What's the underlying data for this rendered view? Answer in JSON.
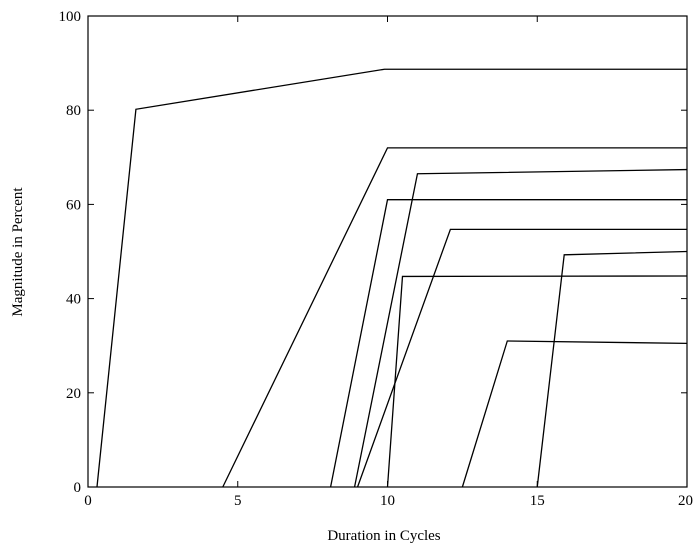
{
  "chart_data": {
    "type": "line",
    "title": "",
    "xlabel": "Duration in Cycles",
    "ylabel": "Magnitude in Percent",
    "xlim": [
      0,
      20
    ],
    "ylim": [
      0,
      100
    ],
    "xticks": [
      0,
      5,
      10,
      15,
      20
    ],
    "yticks": [
      0,
      20,
      40,
      60,
      80,
      100
    ],
    "grid": false,
    "legend": "none",
    "line_color": "#000000",
    "series": [
      {
        "x": [
          0.3,
          1.6,
          9.9,
          20
        ],
        "y": [
          0,
          80.2,
          88.7,
          88.7
        ]
      },
      {
        "x": [
          4.5,
          10.0,
          20
        ],
        "y": [
          0,
          72.0,
          72.0
        ]
      },
      {
        "x": [
          8.9,
          11.0,
          20
        ],
        "y": [
          0,
          66.5,
          67.4
        ]
      },
      {
        "x": [
          8.1,
          10.0,
          20
        ],
        "y": [
          0,
          61.0,
          61.0
        ]
      },
      {
        "x": [
          9.0,
          12.1,
          20
        ],
        "y": [
          0,
          54.7,
          54.7
        ]
      },
      {
        "x": [
          15.0,
          15.9,
          20
        ],
        "y": [
          0,
          49.3,
          50.0
        ]
      },
      {
        "x": [
          10.0,
          10.5,
          20
        ],
        "y": [
          0,
          44.7,
          44.8
        ]
      },
      {
        "x": [
          12.5,
          14.0,
          20
        ],
        "y": [
          0,
          31.0,
          30.5
        ]
      }
    ]
  }
}
